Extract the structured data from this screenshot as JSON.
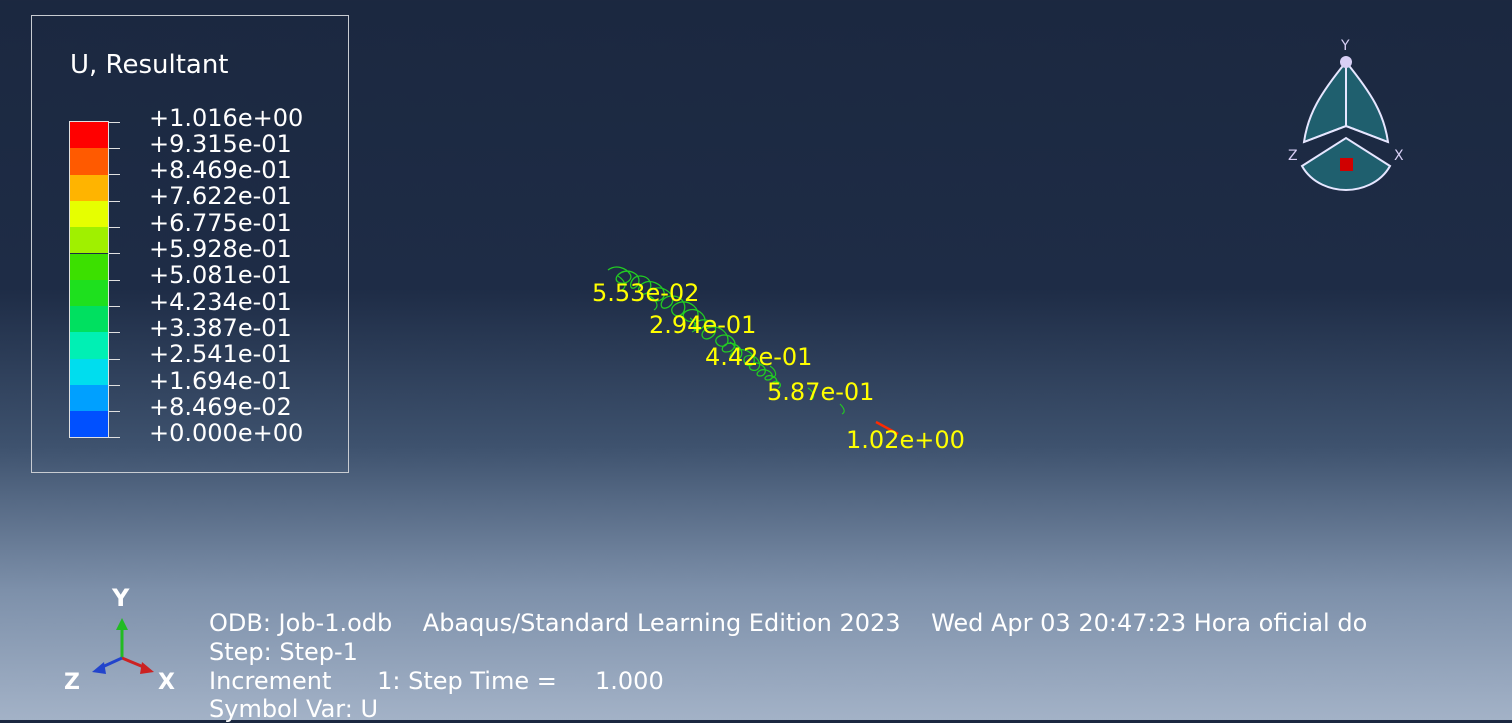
{
  "legend": {
    "title": "U, Resultant",
    "labels": [
      "+1.016e+00",
      "+9.315e-01",
      "+8.469e-01",
      "+7.622e-01",
      "+6.775e-01",
      "+5.928e-01",
      "+5.081e-01",
      "+4.234e-01",
      "+3.387e-01",
      "+2.541e-01",
      "+1.694e-01",
      "+8.469e-02",
      "+0.000e+00"
    ],
    "colors": [
      "#ff0000",
      "#ff5a00",
      "#ffb400",
      "#e6ff00",
      "#a0f000",
      "#3ce000",
      "#1ee01e",
      "#00e060",
      "#00f0b4",
      "#00ddee",
      "#00a0ff",
      "#0050ff",
      "#0000ff"
    ]
  },
  "node_labels": [
    "5.53e-02",
    "2.94e-01",
    "4.42e-01",
    "5.87e-01",
    "1.02e+00"
  ],
  "view_triad": {
    "y": "Y",
    "x": "X",
    "z": "Z"
  },
  "axis_triad": {
    "y": "Y",
    "x": "X",
    "z": "Z"
  },
  "info": {
    "odb": "ODB: Job-1.odb    Abaqus/Standard Learning Edition 2023    Wed Apr 03 20:47:23 Hora oficial do",
    "step": "Step: Step-1",
    "increment": "Increment      1: Step Time =     1.000",
    "symbol": "Symbol Var: U"
  }
}
